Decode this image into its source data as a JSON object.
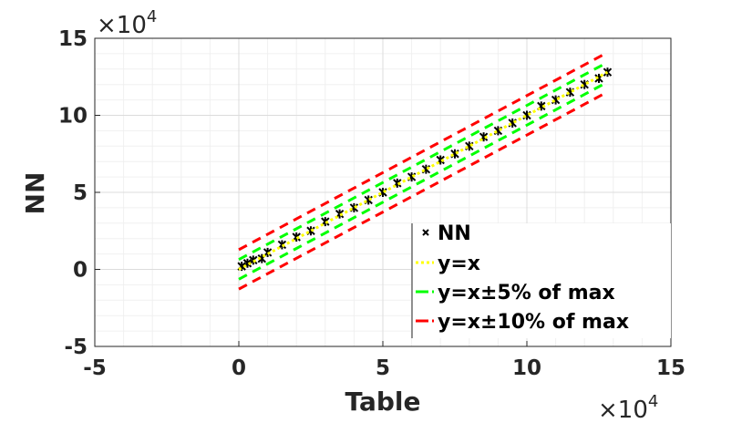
{
  "chart_data": {
    "type": "scatter",
    "xlabel": "Table",
    "ylabel": "NN",
    "x_multiplier": "×10",
    "x_multiplier_exp": "4",
    "y_multiplier": "×10",
    "y_multiplier_exp": "4",
    "xlim": [
      -5,
      15
    ],
    "ylim": [
      -5,
      15
    ],
    "xticks": [
      "-5",
      "0",
      "5",
      "10",
      "15"
    ],
    "yticks": [
      "-5",
      "0",
      "5",
      "10",
      "15"
    ],
    "grid": true,
    "minor_grid": true,
    "legend_position": "bottom-right",
    "series": [
      {
        "name": "NN",
        "color": "#000000",
        "marker": "star",
        "x": [
          0.1,
          0.3,
          0.5,
          0.8,
          1.0,
          1.5,
          2.0,
          2.5,
          3.0,
          3.5,
          4.0,
          4.5,
          5.0,
          5.5,
          6.0,
          6.5,
          7.0,
          7.5,
          8.0,
          8.5,
          9.0,
          9.5,
          10.0,
          10.5,
          11.0,
          11.5,
          12.0,
          12.5,
          12.8
        ],
        "y": [
          0.2,
          0.4,
          0.6,
          0.7,
          1.1,
          1.6,
          2.1,
          2.5,
          3.1,
          3.6,
          4.0,
          4.5,
          5.0,
          5.6,
          6.0,
          6.5,
          7.1,
          7.5,
          8.0,
          8.6,
          9.0,
          9.5,
          10.0,
          10.6,
          11.0,
          11.5,
          12.0,
          12.4,
          12.8
        ]
      },
      {
        "name": "y=x",
        "color": "#ffff00",
        "style": "dotted",
        "x": [
          0,
          12.8
        ],
        "y": [
          0,
          12.8
        ]
      },
      {
        "name": "y=x±5% of max",
        "color": "#00ff00",
        "style": "dashed",
        "offset": 0.64,
        "x": [
          0,
          12.8
        ]
      },
      {
        "name": "y=x±10% of max",
        "color": "#ff0000",
        "style": "dashed",
        "offset": 1.28,
        "x": [
          0,
          12.8
        ]
      }
    ],
    "legend": [
      "NN",
      "y=x",
      "y=x±5% of max",
      "y=x±10% of max"
    ]
  }
}
